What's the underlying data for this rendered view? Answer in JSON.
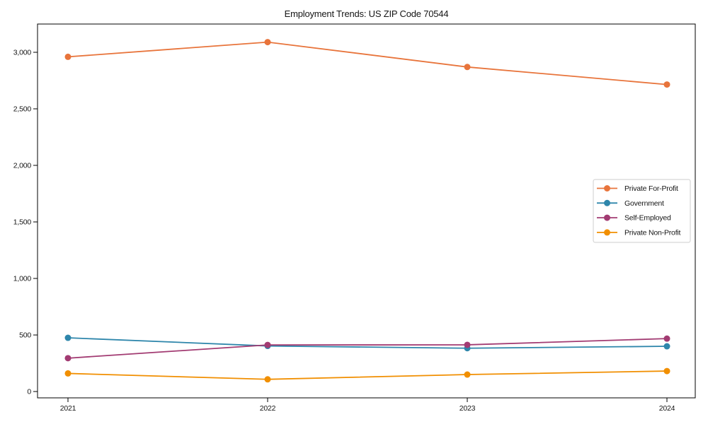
{
  "chart_data": {
    "type": "line",
    "title": "Employment Trends: US ZIP Code 70544",
    "x": [
      2021,
      2022,
      2023,
      2024
    ],
    "x_tick_labels": [
      "2021",
      "2022",
      "2023",
      "2024"
    ],
    "series": [
      {
        "name": "Private For-Profit",
        "color": "#E8743B",
        "values": [
          2960,
          3090,
          2870,
          2715
        ]
      },
      {
        "name": "Government",
        "color": "#2E86AB",
        "values": [
          475,
          403,
          383,
          400
        ]
      },
      {
        "name": "Self-Employed",
        "color": "#A23B72",
        "values": [
          295,
          412,
          413,
          468
        ]
      },
      {
        "name": "Private Non-Profit",
        "color": "#F18F01",
        "values": [
          160,
          108,
          150,
          181
        ]
      }
    ],
    "yticks": [
      {
        "value": 0,
        "label": "0"
      },
      {
        "value": 500,
        "label": "500"
      },
      {
        "value": 1000,
        "label": "1,000"
      },
      {
        "value": 1500,
        "label": "1,500"
      },
      {
        "value": 2000,
        "label": "2,000"
      },
      {
        "value": 2500,
        "label": "2,500"
      },
      {
        "value": 3000,
        "label": "3,000"
      }
    ],
    "ylim": [
      -56,
      3250
    ],
    "xlabel": "",
    "ylabel": "",
    "grid": false,
    "legend_position": "center right",
    "marker": "circle",
    "axis_color": "#000000",
    "legend_border_color": "#cccccc",
    "background": "#ffffff"
  }
}
